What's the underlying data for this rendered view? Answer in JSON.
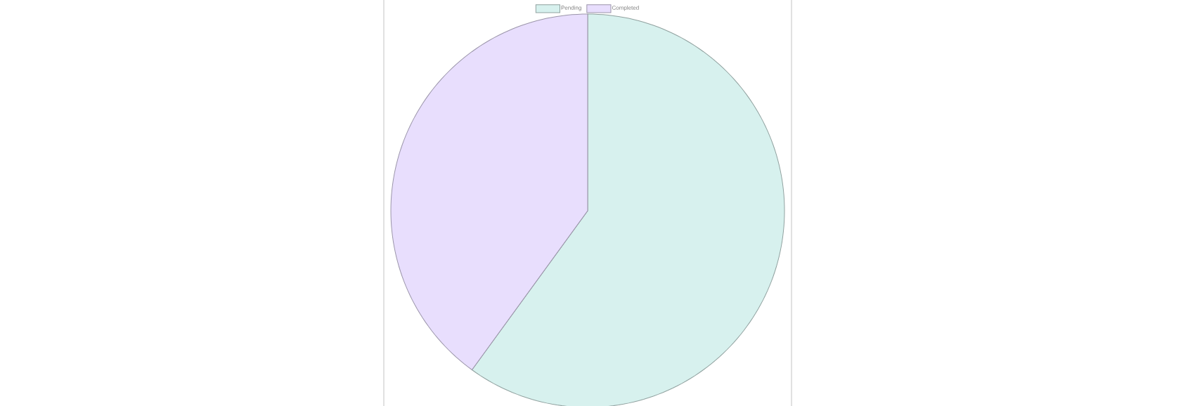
{
  "chart_data": {
    "type": "pie",
    "categories": [
      "Pending",
      "Completed"
    ],
    "values": [
      60,
      40
    ],
    "colors": [
      "#d7f1ee",
      "#e8defd"
    ],
    "legend": "top"
  }
}
